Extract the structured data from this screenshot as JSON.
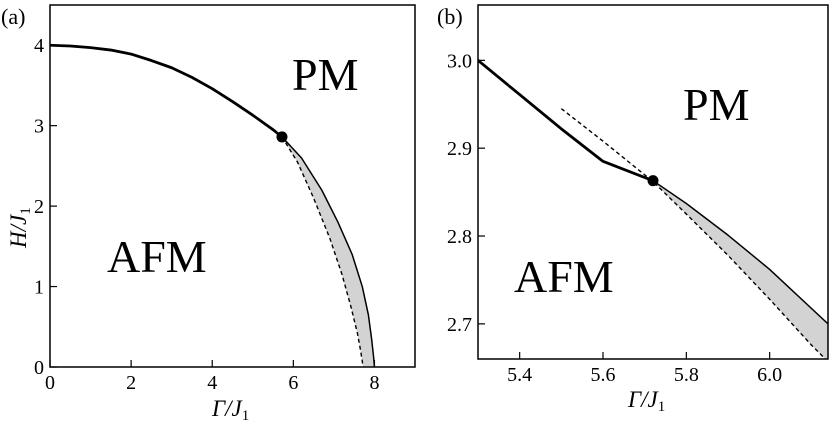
{
  "chart_data": [
    {
      "panel": "(a)",
      "type": "line",
      "xlabel": "Γ/J",
      "xlabel_sub": "1",
      "ylabel": "H/J",
      "ylabel_sub": "1",
      "xlim": [
        0,
        9
      ],
      "ylim": [
        0,
        4.5
      ],
      "xticks": [
        0,
        2,
        4,
        6,
        8
      ],
      "yticks": [
        0,
        1,
        2,
        3,
        4
      ],
      "regions": [
        {
          "label": "PM",
          "x": 6.3,
          "y": 3.45
        },
        {
          "label": "AFM",
          "x": 1.4,
          "y": 1.35
        }
      ],
      "series": [
        {
          "style": "thick-solid",
          "x": [
            0,
            0.5,
            1.0,
            1.5,
            2.0,
            2.5,
            3.0,
            3.5,
            4.0,
            4.5,
            5.0,
            5.5,
            5.72
          ],
          "y": [
            4.0,
            3.99,
            3.97,
            3.94,
            3.89,
            3.81,
            3.72,
            3.6,
            3.46,
            3.3,
            3.13,
            2.95,
            2.86
          ]
        },
        {
          "style": "thin-solid",
          "x": [
            5.72,
            6.2,
            6.7,
            7.1,
            7.45,
            7.7,
            7.85,
            7.93,
            7.98,
            8.0
          ],
          "y": [
            2.86,
            2.6,
            2.2,
            1.8,
            1.4,
            1.0,
            0.65,
            0.35,
            0.12,
            0.0
          ]
        },
        {
          "style": "dashed",
          "x": [
            5.72,
            6.1,
            6.5,
            6.9,
            7.2,
            7.42,
            7.58,
            7.66,
            7.7,
            7.72
          ],
          "y": [
            2.86,
            2.55,
            2.1,
            1.6,
            1.15,
            0.75,
            0.42,
            0.2,
            0.07,
            0.0
          ]
        }
      ],
      "marker": {
        "x": 5.72,
        "y": 2.86
      }
    },
    {
      "panel": "(b)",
      "type": "line",
      "xlabel": "Γ/J",
      "xlabel_sub": "1",
      "xlim": [
        5.3,
        6.14
      ],
      "ylim": [
        2.66,
        3.063
      ],
      "xticks": [
        5.4,
        5.6,
        5.8,
        6.0
      ],
      "yticks": [
        2.7,
        2.8,
        2.9,
        3.0
      ],
      "ytick_labels": [
        "2.7",
        "2.8",
        "2.9",
        "3.0"
      ],
      "xtick_labels": [
        "5.4",
        "5.6",
        "5.8",
        "6.0"
      ],
      "regions": [
        {
          "label": "PM",
          "x": 5.86,
          "y": 2.935
        },
        {
          "label": "AFM",
          "x": 5.44,
          "y": 2.755
        }
      ],
      "series": [
        {
          "style": "thick-solid",
          "x": [
            5.3,
            5.4,
            5.5,
            5.6,
            5.72
          ],
          "y": [
            3.0,
            2.961,
            2.922,
            2.885,
            2.863
          ]
        },
        {
          "style": "thin-solid",
          "x": [
            5.72,
            5.8,
            5.9,
            6.0,
            6.14
          ],
          "y": [
            2.863,
            2.837,
            2.801,
            2.762,
            2.7
          ]
        },
        {
          "style": "dashed",
          "x": [
            5.5,
            5.6,
            5.72,
            5.8,
            5.9,
            6.0,
            6.1,
            6.14
          ],
          "y": [
            2.945,
            2.908,
            2.862,
            2.825,
            2.778,
            2.728,
            2.676,
            2.657
          ]
        }
      ],
      "marker": {
        "x": 5.72,
        "y": 2.863
      }
    }
  ]
}
